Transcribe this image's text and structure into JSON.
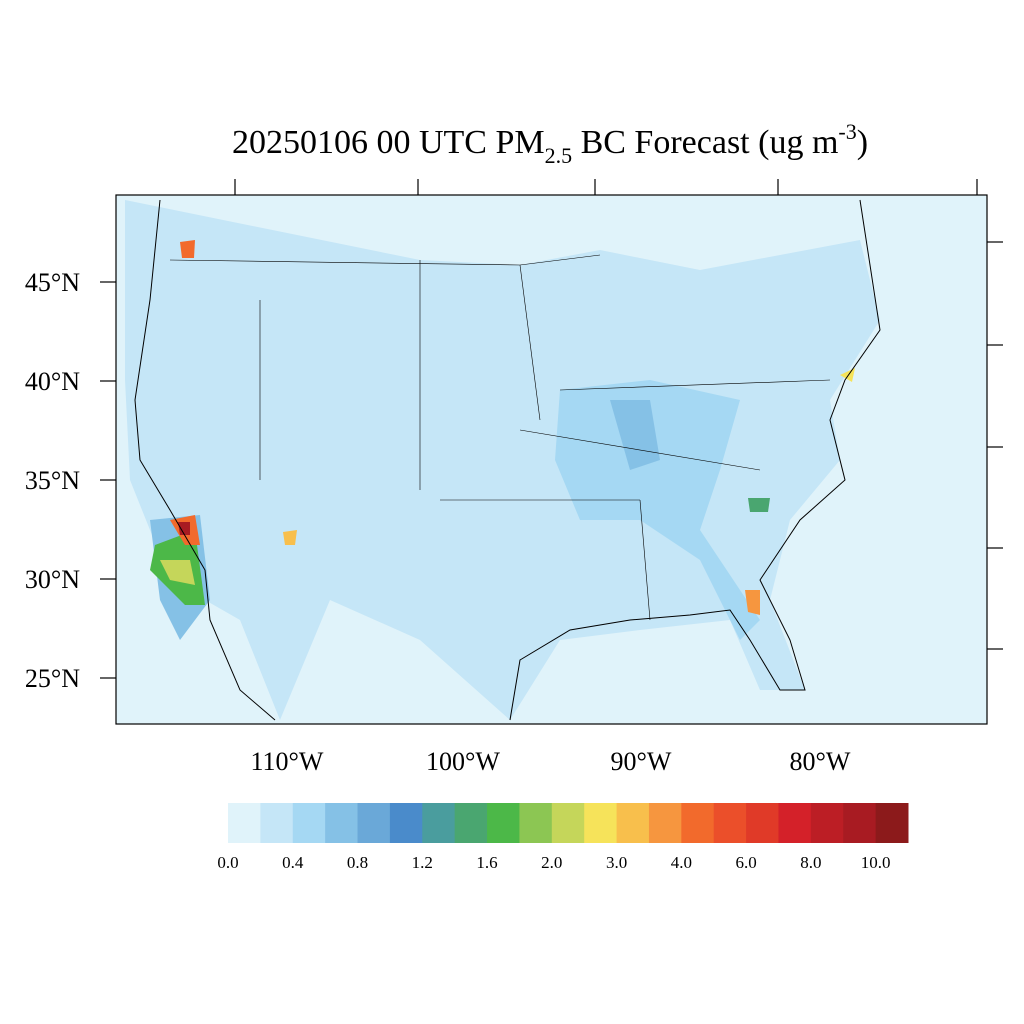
{
  "title": {
    "main": "20250106 00 UTC PM",
    "sub": "2.5",
    "rest": " BC Forecast (ug m",
    "sup": "-3",
    "end": ")"
  },
  "lat_labels": [
    "45°N",
    "40°N",
    "35°N",
    "30°N",
    "25°N"
  ],
  "lon_labels": [
    "110°W",
    "100°W",
    "90°W",
    "80°W"
  ],
  "colorbar": {
    "colors": [
      "#e0f3fa",
      "#c5e6f7",
      "#a5d8f3",
      "#85c1e6",
      "#6aa8d8",
      "#4a8bcb",
      "#4a9d9e",
      "#4aa670",
      "#4cb848",
      "#8cc653",
      "#c5d65a",
      "#f6e35a",
      "#f8bf4c",
      "#f6963f",
      "#f26a2c",
      "#eb4f2a",
      "#e03a28",
      "#d42129",
      "#bc1e25",
      "#a81b22",
      "#8c1a1b"
    ],
    "labels": [
      "0.0",
      "0.4",
      "0.8",
      "1.2",
      "1.6",
      "2.0",
      "3.0",
      "4.0",
      "6.0",
      "8.0",
      "10.0"
    ]
  }
}
